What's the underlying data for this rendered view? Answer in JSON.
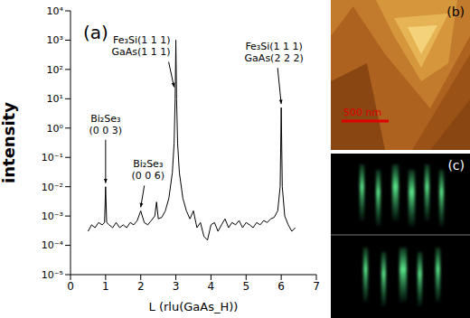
{
  "chart_data": {
    "type": "line",
    "title": "(a)",
    "x_label": "L (rlu(GaAs_H))",
    "y_label": "intensity",
    "log": "y",
    "grid": false,
    "color": "#000000",
    "xlim": [
      0,
      7
    ],
    "xticks": [
      0,
      1,
      2,
      3,
      4,
      5,
      6,
      7
    ],
    "ylim": [
      1e-05,
      10000
    ],
    "yticks": [
      {
        "value": 1e-05,
        "label": "10⁻⁵"
      },
      {
        "value": 0.0001,
        "label": "10⁻⁴"
      },
      {
        "value": 0.001,
        "label": "10⁻³"
      },
      {
        "value": 0.01,
        "label": "10⁻²"
      },
      {
        "value": 0.1,
        "label": "10⁻¹"
      },
      {
        "value": 1,
        "label": "10⁰"
      },
      {
        "value": 10,
        "label": "10¹"
      },
      {
        "value": 100,
        "label": "10²"
      },
      {
        "value": 1000,
        "label": "10³"
      },
      {
        "value": 10000,
        "label": "10⁴"
      }
    ],
    "x": [
      0.5,
      0.6,
      0.7,
      0.8,
      0.9,
      0.97,
      1.0,
      1.03,
      1.1,
      1.2,
      1.3,
      1.4,
      1.5,
      1.6,
      1.7,
      1.8,
      1.9,
      2.0,
      2.1,
      2.2,
      2.3,
      2.4,
      2.45,
      2.5,
      2.6,
      2.7,
      2.8,
      2.9,
      2.95,
      2.98,
      3.0,
      3.02,
      3.05,
      3.1,
      3.2,
      3.3,
      3.4,
      3.5,
      3.6,
      3.7,
      3.8,
      3.9,
      4.0,
      4.1,
      4.2,
      4.3,
      4.4,
      4.5,
      4.6,
      4.7,
      4.8,
      4.9,
      5.0,
      5.1,
      5.2,
      5.3,
      5.4,
      5.5,
      5.6,
      5.7,
      5.8,
      5.9,
      5.97,
      6.0,
      6.03,
      6.1,
      6.2,
      6.3,
      6.4
    ],
    "values": [
      0.0003,
      0.0005,
      0.0004,
      0.0006,
      0.0005,
      0.0006,
      0.01,
      0.0006,
      0.0005,
      0.0004,
      0.0006,
      0.0004,
      0.0005,
      0.0004,
      0.0006,
      0.0005,
      0.0007,
      0.0015,
      0.0006,
      0.0005,
      0.0007,
      0.001,
      0.003,
      0.0008,
      0.0009,
      0.0015,
      0.004,
      0.03,
      0.3,
      10,
      1000,
      10,
      0.3,
      0.03,
      0.004,
      0.0015,
      0.0008,
      0.0015,
      0.0004,
      0.0006,
      0.0002,
      0.00015,
      0.0005,
      0.0006,
      0.0003,
      0.0005,
      0.0008,
      0.0004,
      0.0006,
      0.0005,
      0.0007,
      0.0004,
      0.0006,
      0.0005,
      0.0004,
      0.0006,
      0.0005,
      0.0007,
      0.0006,
      0.0008,
      0.0009,
      0.0015,
      0.01,
      5,
      0.01,
      0.001,
      0.0005,
      0.0003,
      0.0004
    ],
    "annotations": [
      {
        "text": [
          "Bi₂Se₃",
          "(0 0 3)"
        ],
        "x": 1.0,
        "y": 0.01
      },
      {
        "text": [
          "Bi₂Se₃",
          "(0 0 6)"
        ],
        "x": 2.0,
        "y": 0.0015
      },
      {
        "text": [
          "Fe₃Si(1 1 1)",
          "GaAs(1 1 1)"
        ],
        "x": 3.0,
        "y": 1000
      },
      {
        "text": [
          "Fe₃Si(1 1 1)",
          "GaAs(2 2 2)"
        ],
        "x": 6.0,
        "y": 5
      }
    ]
  },
  "panels": {
    "b": {
      "label": "(b)",
      "scale_bar": "500 nm"
    },
    "c": {
      "label": "(c)"
    }
  }
}
